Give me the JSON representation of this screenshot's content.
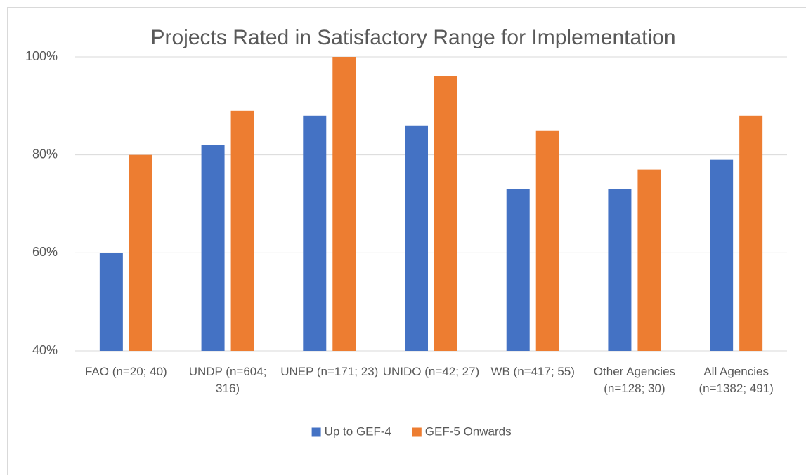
{
  "chart_data": {
    "type": "bar",
    "title": "Projects Rated in Satisfactory Range for Implementation",
    "categories": [
      "FAO (n=20; 40)",
      "UNDP (n=604; 316)",
      "UNEP (n=171; 23)",
      "UNIDO (n=42; 27)",
      "WB (n=417; 55)",
      "Other Agencies (n=128; 30)",
      "All Agencies (n=1382; 491)"
    ],
    "series": [
      {
        "name": "Up to GEF-4",
        "color": "#4472c4",
        "values": [
          60,
          82,
          88,
          86,
          73,
          73,
          79
        ]
      },
      {
        "name": "GEF-5 Onwards",
        "color": "#ed7d31",
        "values": [
          80,
          89,
          100,
          96,
          85,
          77,
          88
        ]
      }
    ],
    "ylim": [
      40,
      100
    ],
    "yticks": [
      {
        "value": 40,
        "label": "40%"
      },
      {
        "value": 60,
        "label": "60%"
      },
      {
        "value": 80,
        "label": "80%"
      },
      {
        "value": 100,
        "label": "100%"
      }
    ],
    "grid": true,
    "legend": "bottom"
  }
}
